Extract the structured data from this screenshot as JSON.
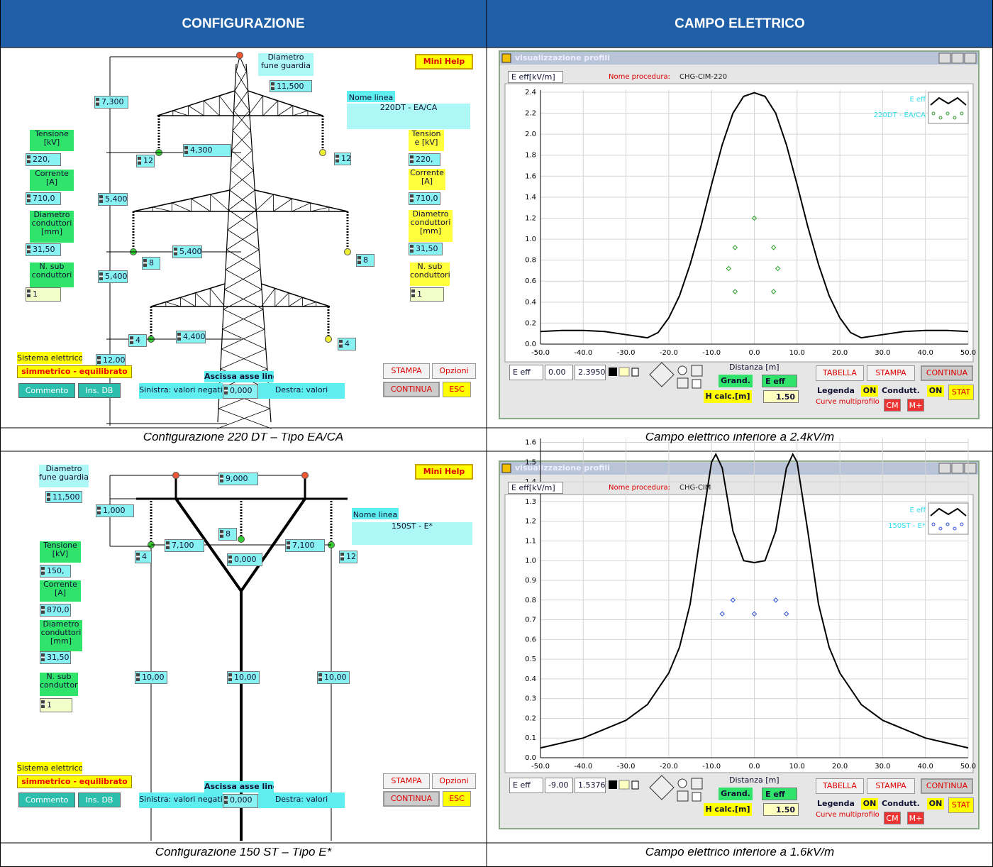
{
  "header": {
    "left": "CONFIGURAZIONE",
    "right": "CAMPO ELETTRICO"
  },
  "captions": [
    "Configurazione 220 DT – Tipo EA/CA",
    "Campo elettrico inferiore a 2.4kV/m",
    "Configurazione 150 ST – Tipo E*",
    "Campo elettrico inferiore a 1.6kV/m"
  ],
  "config_220": {
    "items": [
      "Diametro fune guardia",
      "11,500",
      "Mini Help",
      "7,300",
      "Nome linea",
      "220DT - EA/CA",
      "Tensione [kV]",
      "220,",
      "4,300",
      "12",
      "12",
      "Tension e [kV]",
      "220,",
      "Corrente [A]",
      "710,0",
      "Corrente [A]",
      "710,0",
      "5,400",
      "Diametro conduttori [mm]",
      "5,400",
      "8",
      "8",
      "31,50",
      "Diametro conduttori [mm]",
      "31,50",
      "N. sub conduttori",
      "5,400",
      "1",
      "N. sub conduttori",
      "1",
      "4",
      "4,400",
      "4",
      "Sistema elettrico",
      "12,00",
      "simmetrico - equilibrato",
      "Ascissa asse linea",
      "STAMPA",
      "Opzioni",
      "Commento",
      "Ins. DB",
      "Sinistra: valori negati",
      "0,000",
      "Destra: valori",
      "CONTINUA",
      "ESC"
    ]
  },
  "config_150": {
    "items": [
      "Diametro fune guardia",
      "11,500",
      "9,000",
      "Mini Help",
      "1,000",
      "8",
      "Nome linea",
      "150ST - E*",
      "4",
      "7,100",
      "7,100",
      "12",
      "0,000",
      "Tensione [kV]",
      "150,",
      "Corrente [A]",
      "870,0",
      "Diametro conduttori [mm]",
      "31,50",
      "N. sub conduttori",
      "1",
      "10,00",
      "10,00",
      "10,00",
      "Sistema elettrico",
      "simmetrico - equilibrato",
      "Ascissa asse linea",
      "STAMPA",
      "Opzioni",
      "Commento",
      "Ins. DB",
      "Sinistra: valori negati",
      "0,000",
      "Destra: valori",
      "CONTINUA",
      "ESC"
    ]
  },
  "plots": [
    {
      "window_title": "visualizzazione profili",
      "y_label": "E eff[kV/m]",
      "procedure_label": "Nome procedura:",
      "procedure": "CHG-CIM-220",
      "legend_curve": "E eff",
      "legend_series": "220DT - EA/CA",
      "legend_color": "#33dcef",
      "x_label": "Distanza [m]",
      "xlim": [
        -50,
        50
      ],
      "ylim": [
        0,
        2.42
      ],
      "xticks": [
        {
          "value": -50,
          "label": "-50.0"
        },
        {
          "value": -40,
          "label": "-40.0"
        },
        {
          "value": -30,
          "label": "-30.0"
        },
        {
          "value": -20,
          "label": "-20.0"
        },
        {
          "value": -10,
          "label": "-10.0"
        },
        {
          "value": 0,
          "label": "0.0"
        },
        {
          "value": 10,
          "label": "10.0"
        },
        {
          "value": 20,
          "label": "20.0"
        },
        {
          "value": 30,
          "label": "30.0"
        },
        {
          "value": 40,
          "label": "40.0"
        },
        {
          "value": 50,
          "label": "50.0"
        }
      ],
      "yticks": [
        {
          "value": 0,
          "label": "0.0"
        },
        0.2,
        0.4,
        0.6,
        0.8,
        {
          "value": 1,
          "label": "1.0"
        },
        1.2,
        1.4,
        1.6,
        1.8,
        {
          "value": 2,
          "label": "2.0"
        },
        2.2,
        2.4
      ],
      "grid": true,
      "curve_color": "#000000",
      "conductor_color": "#2aa02a",
      "curve": {
        "x": [
          -50,
          -45,
          -40,
          -35,
          -30,
          -25,
          -22.5,
          -20,
          -17.5,
          -15,
          -12.5,
          -10,
          -7.5,
          -5,
          -2.5,
          0,
          2.5,
          5,
          7.5,
          10,
          12.5,
          15,
          17.5,
          20,
          22.5,
          25,
          30,
          35,
          40,
          45,
          50
        ],
        "values": [
          0.12,
          0.13,
          0.13,
          0.12,
          0.09,
          0.06,
          0.11,
          0.25,
          0.46,
          0.76,
          1.12,
          1.52,
          1.9,
          2.2,
          2.36,
          2.395,
          2.36,
          2.2,
          1.9,
          1.52,
          1.12,
          0.76,
          0.46,
          0.25,
          0.11,
          0.06,
          0.09,
          0.12,
          0.13,
          0.13,
          0.12
        ]
      },
      "conductors": {
        "x": [
          -4.5,
          4.5,
          -6,
          5.5,
          -4.5,
          4.5,
          0
        ],
        "values": [
          0.92,
          0.92,
          0.72,
          0.72,
          0.5,
          0.5,
          1.2
        ]
      },
      "controls": [
        "E eff",
        "0.00",
        "2.3950",
        "Grand.",
        "E eff",
        "H calc.[m]",
        "1.50",
        "TABELLA",
        "STAMPA",
        "CONTINUA",
        "Legenda",
        "ON",
        "Condutt.",
        "ON",
        "STAT",
        "Curve multiprofilo",
        "CM",
        "M+"
      ]
    },
    {
      "window_title": "visualizzazione profili",
      "y_label": "E eff[kV/m]",
      "procedure_label": "Nome procedura:",
      "procedure": "CHG-CIM",
      "legend_curve": "E eff",
      "legend_series": "150ST - E*",
      "legend_color": "#33dcef",
      "x_label": "Distanza [m]",
      "xlim": [
        -50,
        50
      ],
      "ylim": [
        0,
        1.62
      ],
      "xticks": [
        {
          "value": -50,
          "label": "-50.0"
        },
        {
          "value": -40,
          "label": "-40.0"
        },
        {
          "value": -30,
          "label": "-30.0"
        },
        {
          "value": -20,
          "label": "-20.0"
        },
        {
          "value": -10,
          "label": "-10.0"
        },
        {
          "value": 0,
          "label": "0.0"
        },
        {
          "value": 10,
          "label": "10.0"
        },
        {
          "value": 20,
          "label": "20.0"
        },
        {
          "value": 30,
          "label": "30.0"
        },
        {
          "value": 40,
          "label": "40.0"
        },
        {
          "value": 50,
          "label": "50.0"
        }
      ],
      "yticks": [
        {
          "value": 0,
          "label": "0.0"
        },
        0.1,
        0.2,
        0.3,
        0.4,
        0.5,
        0.6,
        0.7,
        0.8,
        0.9,
        {
          "value": 1,
          "label": "1.0"
        },
        1.1,
        1.2,
        1.3,
        1.4,
        1.5,
        1.6
      ],
      "grid": true,
      "curve_color": "#000000",
      "conductor_color": "#3355dd",
      "curve": {
        "x": [
          -50,
          -40,
          -30,
          -25,
          -20,
          -17.5,
          -15,
          -12.5,
          -10,
          -9,
          -7.5,
          -5,
          -2.5,
          0,
          2.5,
          5,
          7.5,
          9,
          10,
          12.5,
          15,
          17.5,
          20,
          25,
          30,
          40,
          50
        ],
        "values": [
          0.05,
          0.1,
          0.19,
          0.27,
          0.43,
          0.56,
          0.78,
          1.15,
          1.5,
          1.54,
          1.47,
          1.15,
          1.0,
          0.99,
          1.0,
          1.15,
          1.47,
          1.54,
          1.5,
          1.15,
          0.78,
          0.56,
          0.43,
          0.27,
          0.19,
          0.1,
          0.05
        ]
      },
      "conductors": {
        "x": [
          -5,
          5,
          -7.5,
          0,
          7.5
        ],
        "values": [
          0.8,
          0.8,
          0.73,
          0.73,
          0.73
        ]
      },
      "controls": [
        "E eff",
        "-9.00",
        "1.5376",
        "Grand.",
        "E eff",
        "H calc.[m]",
        "1.50",
        "TABELLA",
        "STAMPA",
        "CONTINUA",
        "Legenda",
        "ON",
        "Condutt.",
        "ON",
        "STAT",
        "Curve multiprofilo",
        "CM",
        "M+"
      ]
    }
  ]
}
